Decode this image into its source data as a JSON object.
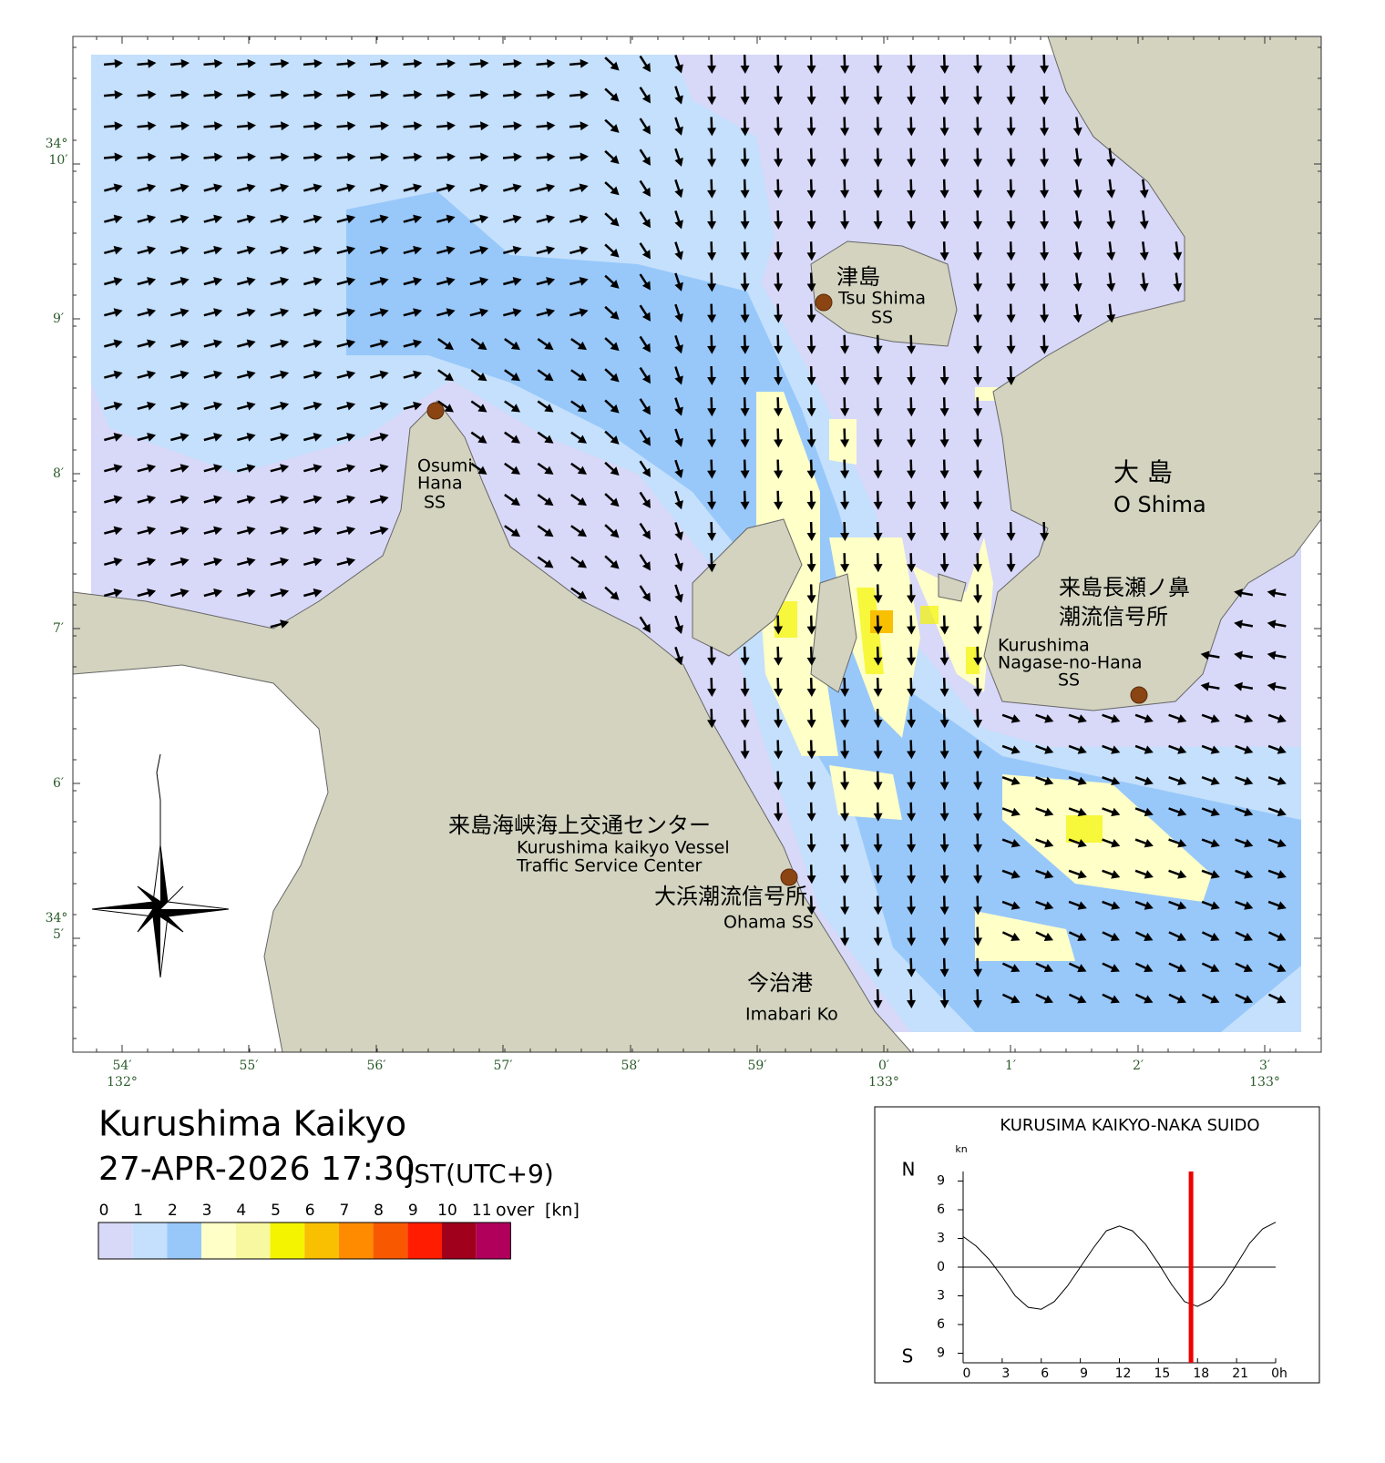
{
  "header": {
    "title": "Kurushima Kaikyo",
    "datetime": "27-APR-2026 17:30",
    "timezone": "JST(UTC+9)"
  },
  "legend": {
    "labels": [
      "0",
      "1",
      "2",
      "3",
      "4",
      "5",
      "6",
      "7",
      "8",
      "9",
      "10",
      "11"
    ],
    "over": "over",
    "unit": "[kn]",
    "colors": [
      "#d8d8f8",
      "#c4e0fc",
      "#98c8fa",
      "#ffffc8",
      "#f8f8a0",
      "#f4f400",
      "#f8c000",
      "#ff8c00",
      "#f85800",
      "#ff1c00",
      "#a0001c",
      "#b0005c"
    ]
  },
  "map": {
    "lat_ticks": [
      {
        "deg": "34°",
        "min": "10′"
      },
      {
        "min": "9′"
      },
      {
        "min": "8′"
      },
      {
        "min": "7′"
      },
      {
        "min": "6′"
      },
      {
        "deg": "34°",
        "min": "5′"
      }
    ],
    "lon_ticks": [
      {
        "min": "54′",
        "deg": "132°"
      },
      {
        "min": "55′"
      },
      {
        "min": "56′"
      },
      {
        "min": "57′"
      },
      {
        "min": "58′"
      },
      {
        "min": "59′"
      },
      {
        "min": "0′",
        "deg": "133°"
      },
      {
        "min": "1′"
      },
      {
        "min": "2′"
      },
      {
        "min": "3′",
        "deg": "133°"
      }
    ],
    "places": [
      {
        "lines": [
          "津島",
          "Tsu Shima",
          "SS"
        ]
      },
      {
        "lines": [
          "Osumi",
          "Hana",
          "SS"
        ]
      },
      {
        "lines": [
          "大 島",
          "O Shima"
        ]
      },
      {
        "lines": [
          "来島長瀬ノ鼻",
          "潮流信号所",
          "Kurushima",
          "Nagase-no-Hana",
          "SS"
        ]
      },
      {
        "lines": [
          "来島海峡海上交通センター",
          "Kurushima kaikyo Vessel",
          "Traffic Service Center"
        ]
      },
      {
        "lines": [
          "大浜潮流信号所",
          "Ohama SS"
        ]
      },
      {
        "lines": [
          "今治港",
          "Imabari Ko"
        ]
      }
    ]
  },
  "chart_data": {
    "type": "line",
    "title": "KURUSIMA KAIKYO-NAKA SUIDO",
    "y_unit": "kn",
    "north_label": "N",
    "south_label": "S",
    "x": [
      0,
      1,
      2,
      3,
      4,
      5,
      6,
      7,
      8,
      9,
      10,
      11,
      12,
      13,
      14,
      15,
      16,
      17,
      18,
      19,
      20,
      21,
      22,
      23,
      24
    ],
    "values": [
      3.2,
      2.2,
      0.8,
      -1,
      -3,
      -4.2,
      -4.4,
      -3.6,
      -2,
      0,
      2,
      3.8,
      4.3,
      3.8,
      2.4,
      0.4,
      -1.8,
      -3.6,
      -4.1,
      -3.4,
      -1.8,
      0.3,
      2.5,
      4,
      4.7
    ],
    "color": "#000000",
    "xlim": [
      0,
      24
    ],
    "ylim": [
      -10,
      10
    ],
    "xticks": [
      0,
      3,
      6,
      9,
      12,
      15,
      18,
      21,
      {
        "value": 24,
        "label": "0h"
      }
    ],
    "yticks": [
      9,
      6,
      3,
      0,
      {
        "value": -3,
        "label": "3"
      },
      {
        "value": -6,
        "label": "6"
      },
      {
        "value": -9,
        "label": "9"
      }
    ],
    "marker_x": 17.5,
    "marker_color": "#ee0000"
  }
}
